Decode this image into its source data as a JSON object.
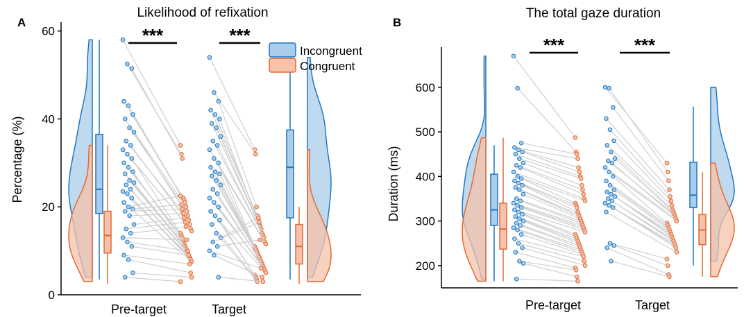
{
  "colors": {
    "incongruent": "#1f77c0",
    "incongruent_fill": "#a9cdea",
    "congruent": "#e06a35",
    "congruent_fill": "#f6c2aa",
    "pair_line": "#cfcfcf",
    "axis": "#000000"
  },
  "chart_data": [
    {
      "panel": "A",
      "type": "raincloud",
      "title": "Likelihood of refixation",
      "ylabel": "Percentage (%)",
      "xlabel": "",
      "categories": [
        "Pre-target",
        "Target"
      ],
      "ylim": [
        0,
        62
      ],
      "yticks": [
        0,
        20,
        40,
        60
      ],
      "grid": false,
      "legend": {
        "position": "top-right",
        "entries": [
          "Incongruent",
          "Congruent"
        ]
      },
      "significance": [
        "***",
        "***"
      ],
      "series": [
        {
          "name": "Incongruent",
          "boxplots": [
            {
              "category": "Pre-target",
              "min": 3.5,
              "q1": 18.5,
              "median": 24,
              "q3": 36.5,
              "max": 58
            },
            {
              "category": "Target",
              "min": 3.5,
              "q1": 17.5,
              "median": 29,
              "q3": 37.5,
              "max": 54
            }
          ]
        },
        {
          "name": "Congruent",
          "boxplots": [
            {
              "category": "Pre-target",
              "min": 2.5,
              "q1": 9.5,
              "median": 13.5,
              "q3": 19,
              "max": 34
            },
            {
              "category": "Target",
              "min": 2.5,
              "q1": 7,
              "median": 11,
              "q3": 16,
              "max": 20
            }
          ]
        }
      ],
      "pairs": [
        {
          "category": "Pre-target",
          "incongruent": [
            58,
            52.5,
            51.5,
            44,
            43,
            41,
            40,
            38,
            37,
            35,
            34,
            33,
            32,
            31,
            30,
            29,
            28,
            27.5,
            26,
            25.5,
            25,
            24,
            23.5,
            23,
            22,
            21,
            20,
            19.5,
            19,
            18,
            16,
            15,
            14,
            13,
            12,
            11,
            9,
            8,
            5,
            4
          ],
          "congruent": [
            34,
            32,
            31,
            22,
            21.5,
            21,
            20,
            19,
            18,
            17,
            16,
            15,
            14.5,
            14,
            13.5,
            13,
            12,
            11.5,
            11,
            10.5,
            10,
            9.5,
            9,
            8.5,
            8,
            7.5,
            22.5,
            20.5,
            19.5,
            18.5,
            17.5,
            16.5,
            15.5,
            12.5,
            10,
            9,
            7,
            5,
            4,
            3
          ]
        },
        {
          "category": "Target",
          "incongruent": [
            54,
            46,
            44,
            42,
            41,
            40,
            39,
            38,
            36,
            35,
            34,
            33,
            31,
            30,
            29,
            28,
            27.5,
            27,
            26,
            25,
            24,
            23,
            22,
            21,
            20,
            19,
            18,
            17,
            16,
            14,
            13,
            12,
            11,
            10,
            9,
            4
          ],
          "congruent": [
            33,
            32,
            20,
            18,
            17,
            16,
            15.5,
            15,
            14,
            13.5,
            13,
            12,
            11.5,
            11,
            10.5,
            10,
            9.5,
            9,
            8.5,
            8,
            7.5,
            7,
            6.5,
            6,
            5.5,
            5,
            4.5,
            4,
            3.5,
            3,
            17.5,
            16.5,
            12.5,
            6,
            4,
            3
          ]
        }
      ]
    },
    {
      "panel": "B",
      "type": "raincloud",
      "title": "The total gaze duration",
      "ylabel": "Duration (ms)",
      "xlabel": "",
      "categories": [
        "Pre-target",
        "Target"
      ],
      "ylim": [
        150,
        690
      ],
      "yticks": [
        200,
        300,
        400,
        500,
        600
      ],
      "grid": false,
      "significance": [
        "***",
        "***"
      ],
      "series": [
        {
          "name": "Incongruent",
          "boxplots": [
            {
              "category": "Pre-target",
              "min": 165,
              "q1": 290,
              "median": 325,
              "q3": 405,
              "max": 470
            },
            {
              "category": "Target",
              "min": 200,
              "q1": 330,
              "median": 358,
              "q3": 432,
              "max": 557
            }
          ]
        },
        {
          "name": "Congruent",
          "boxplots": [
            {
              "category": "Pre-target",
              "min": 165,
              "q1": 237,
              "median": 282,
              "q3": 340,
              "max": 487
            },
            {
              "category": "Target",
              "min": 175,
              "q1": 247,
              "median": 280,
              "q3": 315,
              "max": 410
            }
          ]
        }
      ],
      "pairs": [
        {
          "category": "Pre-target",
          "incongruent": [
            670,
            598,
            475,
            465,
            460,
            455,
            450,
            440,
            430,
            425,
            420,
            410,
            400,
            395,
            390,
            385,
            380,
            375,
            370,
            360,
            350,
            345,
            340,
            335,
            330,
            325,
            320,
            315,
            310,
            305,
            300,
            295,
            290,
            285,
            280,
            270,
            260,
            250,
            240,
            230,
            210,
            205,
            170
          ],
          "congruent": [
            487,
            455,
            450,
            440,
            420,
            410,
            400,
            395,
            380,
            370,
            360,
            350,
            345,
            340,
            335,
            330,
            320,
            315,
            310,
            305,
            300,
            295,
            290,
            285,
            280,
            275,
            270,
            265,
            260,
            255,
            250,
            245,
            240,
            235,
            230,
            225,
            220,
            210,
            200,
            195,
            190,
            175,
            165
          ]
        },
        {
          "category": "Target",
          "incongruent": [
            600,
            598,
            555,
            530,
            505,
            480,
            470,
            455,
            440,
            435,
            430,
            420,
            410,
            400,
            390,
            380,
            370,
            365,
            360,
            355,
            350,
            345,
            340,
            335,
            330,
            320,
            250,
            245,
            240,
            210
          ],
          "congruent": [
            430,
            410,
            390,
            370,
            355,
            345,
            335,
            325,
            320,
            315,
            310,
            305,
            300,
            295,
            290,
            285,
            280,
            275,
            270,
            265,
            260,
            255,
            250,
            245,
            240,
            230,
            215,
            200,
            180,
            175
          ]
        }
      ]
    }
  ]
}
